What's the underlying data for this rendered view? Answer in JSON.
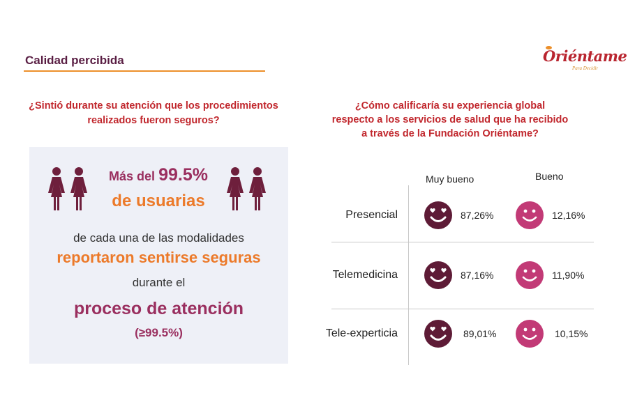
{
  "header": {
    "title": "Calidad percibida",
    "logo_text": "Oriéntame",
    "logo_tagline": "Para Decidir"
  },
  "left": {
    "question": "¿Sintió durante su atención que los procedimientos realizados fueron seguros?",
    "lead_prefix": "Más del ",
    "lead_value": "99.5%",
    "lead_line2": "de usuarias",
    "line1": "de cada una de las modalidades",
    "line2": "reportaron sentirse seguras",
    "line3": "durante el",
    "line4": "proceso de atención",
    "line5": "(≥99.5%)"
  },
  "right": {
    "question_lines": [
      "¿Cómo calificaría su experiencia global",
      "respecto a los servicios de salud que ha recibido",
      "a través de la Fundación Oriéntame?"
    ],
    "columns": [
      "Muy bueno",
      "Bueno"
    ],
    "rows": [
      {
        "label": "Presencial",
        "muy_bueno": "87,26%",
        "bueno": "12,16%"
      },
      {
        "label": "Telemedicina",
        "muy_bueno": "87,16%",
        "bueno": "11,90%"
      },
      {
        "label": "Tele-experticia",
        "muy_bueno": "89,01%",
        "bueno": "10,15%"
      }
    ]
  },
  "icons": {
    "women_figures": "women-figures-icon",
    "love_face": "heart-eyes-face-icon",
    "smile_face": "smiling-face-icon"
  },
  "colors": {
    "title": "#5a1f44",
    "question": "#c1272d",
    "accent_orange": "#ec7a2a",
    "accent_purple": "#9a2f5f",
    "face_dark": "#5e1b36",
    "face_pink": "#c23a76",
    "panel": "#eef0f7"
  }
}
